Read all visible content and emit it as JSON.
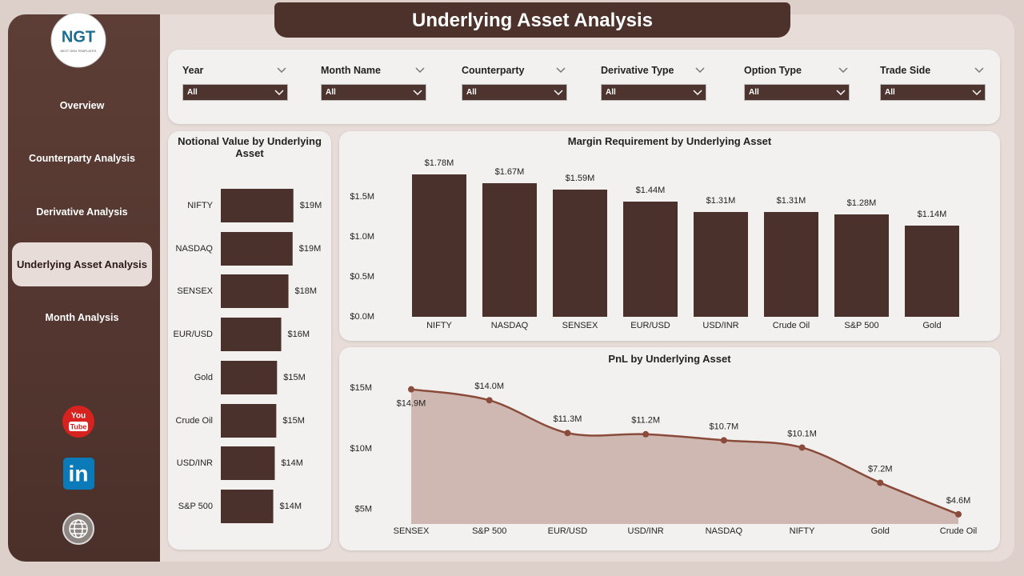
{
  "header": {
    "title": "Underlying Asset Analysis"
  },
  "logo": {
    "name": "NGT",
    "tagline": "NEXT GEN TEMPLATES"
  },
  "nav": [
    {
      "label": "Overview",
      "active": false
    },
    {
      "label": "Counterparty Analysis",
      "active": false
    },
    {
      "label": "Derivative Analysis",
      "active": false
    },
    {
      "label": "Underlying Asset Analysis",
      "active": true
    },
    {
      "label": "Month Analysis",
      "active": false
    }
  ],
  "social": {
    "youtube": [
      "You",
      "Tube"
    ],
    "linkedin": "in"
  },
  "filters": [
    {
      "label": "Year",
      "value": "All"
    },
    {
      "label": "Month Name",
      "value": "All"
    },
    {
      "label": "Counterparty",
      "value": "All"
    },
    {
      "label": "Derivative Type",
      "value": "All"
    },
    {
      "label": "Option Type",
      "value": "All"
    },
    {
      "label": "Trade Side",
      "value": "All"
    }
  ],
  "chart_data": [
    {
      "type": "hbar",
      "title": "Notional Value by Underlying Asset",
      "categories": [
        "NIFTY",
        "NASDAQ",
        "SENSEX",
        "EUR/USD",
        "Gold",
        "Crude Oil",
        "USD/INR",
        "S&P 500"
      ],
      "values": [
        19.1,
        18.9,
        17.8,
        15.9,
        14.8,
        14.6,
        14.2,
        13.8
      ],
      "value_labels": [
        "$19M",
        "$19M",
        "$18M",
        "$16M",
        "$15M",
        "$15M",
        "$14M",
        "$14M"
      ],
      "color": "#4a312c"
    },
    {
      "type": "bar",
      "title": "Margin Requirement by Underlying Asset",
      "categories": [
        "NIFTY",
        "NASDAQ",
        "SENSEX",
        "EUR/USD",
        "USD/INR",
        "Crude Oil",
        "S&P 500",
        "Gold"
      ],
      "values": [
        1.78,
        1.67,
        1.59,
        1.44,
        1.31,
        1.31,
        1.28,
        1.14
      ],
      "value_labels": [
        "$1.78M",
        "$1.67M",
        "$1.59M",
        "$1.44M",
        "$1.31M",
        "$1.31M",
        "$1.28M",
        "$1.14M"
      ],
      "color": "#4a312c",
      "ylim": [
        0,
        1.95
      ],
      "yticks": [
        {
          "value": 0,
          "label": "$0.0M"
        },
        {
          "value": 0.5,
          "label": "$0.5M"
        },
        {
          "value": 1,
          "label": "$1.0M"
        },
        {
          "value": 1.5,
          "label": "$1.5M"
        }
      ]
    },
    {
      "type": "area",
      "title": "PnL by Underlying Asset",
      "categories": [
        "SENSEX",
        "S&P 500",
        "EUR/USD",
        "USD/INR",
        "NASDAQ",
        "NIFTY",
        "Gold",
        "Crude Oil"
      ],
      "values": [
        14.9,
        14.0,
        11.3,
        11.2,
        10.7,
        10.1,
        7.2,
        4.6
      ],
      "value_labels": [
        "$14.9M",
        "$14.0M",
        "$11.3M",
        "$11.2M",
        "$10.7M",
        "$10.1M",
        "$7.2M",
        "$4.6M"
      ],
      "color": "#8a4b3a",
      "fill_color": "#c9aea7",
      "ylim": [
        3.8,
        16
      ],
      "yticks": [
        {
          "value": 5,
          "label": "$5M"
        },
        {
          "value": 10,
          "label": "$10M"
        },
        {
          "value": 15,
          "label": "$15M"
        }
      ]
    }
  ]
}
